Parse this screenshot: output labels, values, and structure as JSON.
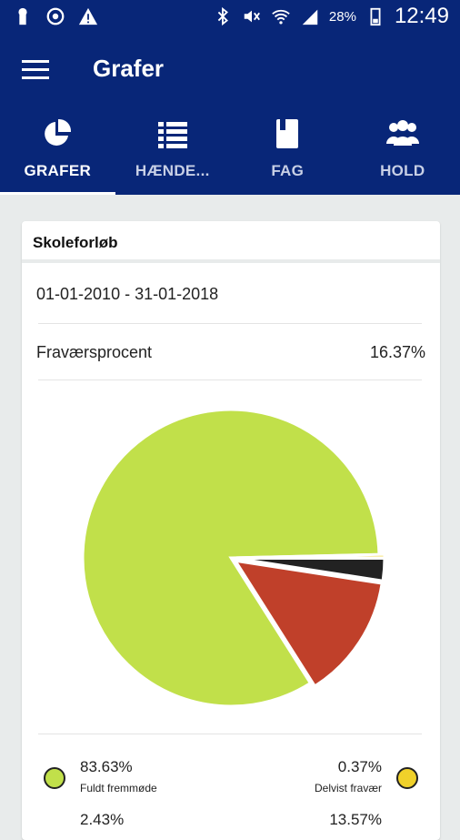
{
  "status_bar": {
    "battery": "28%",
    "time": "12:49"
  },
  "app_bar": {
    "title": "Grafer"
  },
  "tabs": [
    {
      "label": "GRAFER",
      "icon": "pie-chart-icon",
      "active": true
    },
    {
      "label": "HÆNDE...",
      "icon": "list-icon",
      "active": false
    },
    {
      "label": "FAG",
      "icon": "book-icon",
      "active": false
    },
    {
      "label": "HOLD",
      "icon": "group-icon",
      "active": false
    }
  ],
  "card": {
    "title": "Skoleforløb",
    "date_range": "01-01-2010 - 31-01-2018",
    "metric_label": "Fraværsprocent",
    "metric_value": "16.37%"
  },
  "colors": {
    "primary": "#082678",
    "present": "#c1e04a",
    "absent": "#c0402a",
    "other": "#222222",
    "partial": "#f0d12a"
  },
  "chart_data": {
    "type": "pie",
    "slices": [
      {
        "label": "Fuldt fremmøde",
        "value": 83.63,
        "color": "#c1e04a"
      },
      {
        "label": "Delvist fravær",
        "value": 0.37,
        "color": "#f0d12a"
      },
      {
        "value": 13.57,
        "color": "#c0402a"
      },
      {
        "value": 2.43,
        "color": "#222222"
      }
    ]
  },
  "legend": {
    "left": {
      "percent": "83.63%",
      "label": "Fuldt fremmøde"
    },
    "right": {
      "percent": "0.37%",
      "label": "Delvist fravær"
    },
    "partial_left": "2.43%",
    "partial_right": "13.57%"
  }
}
